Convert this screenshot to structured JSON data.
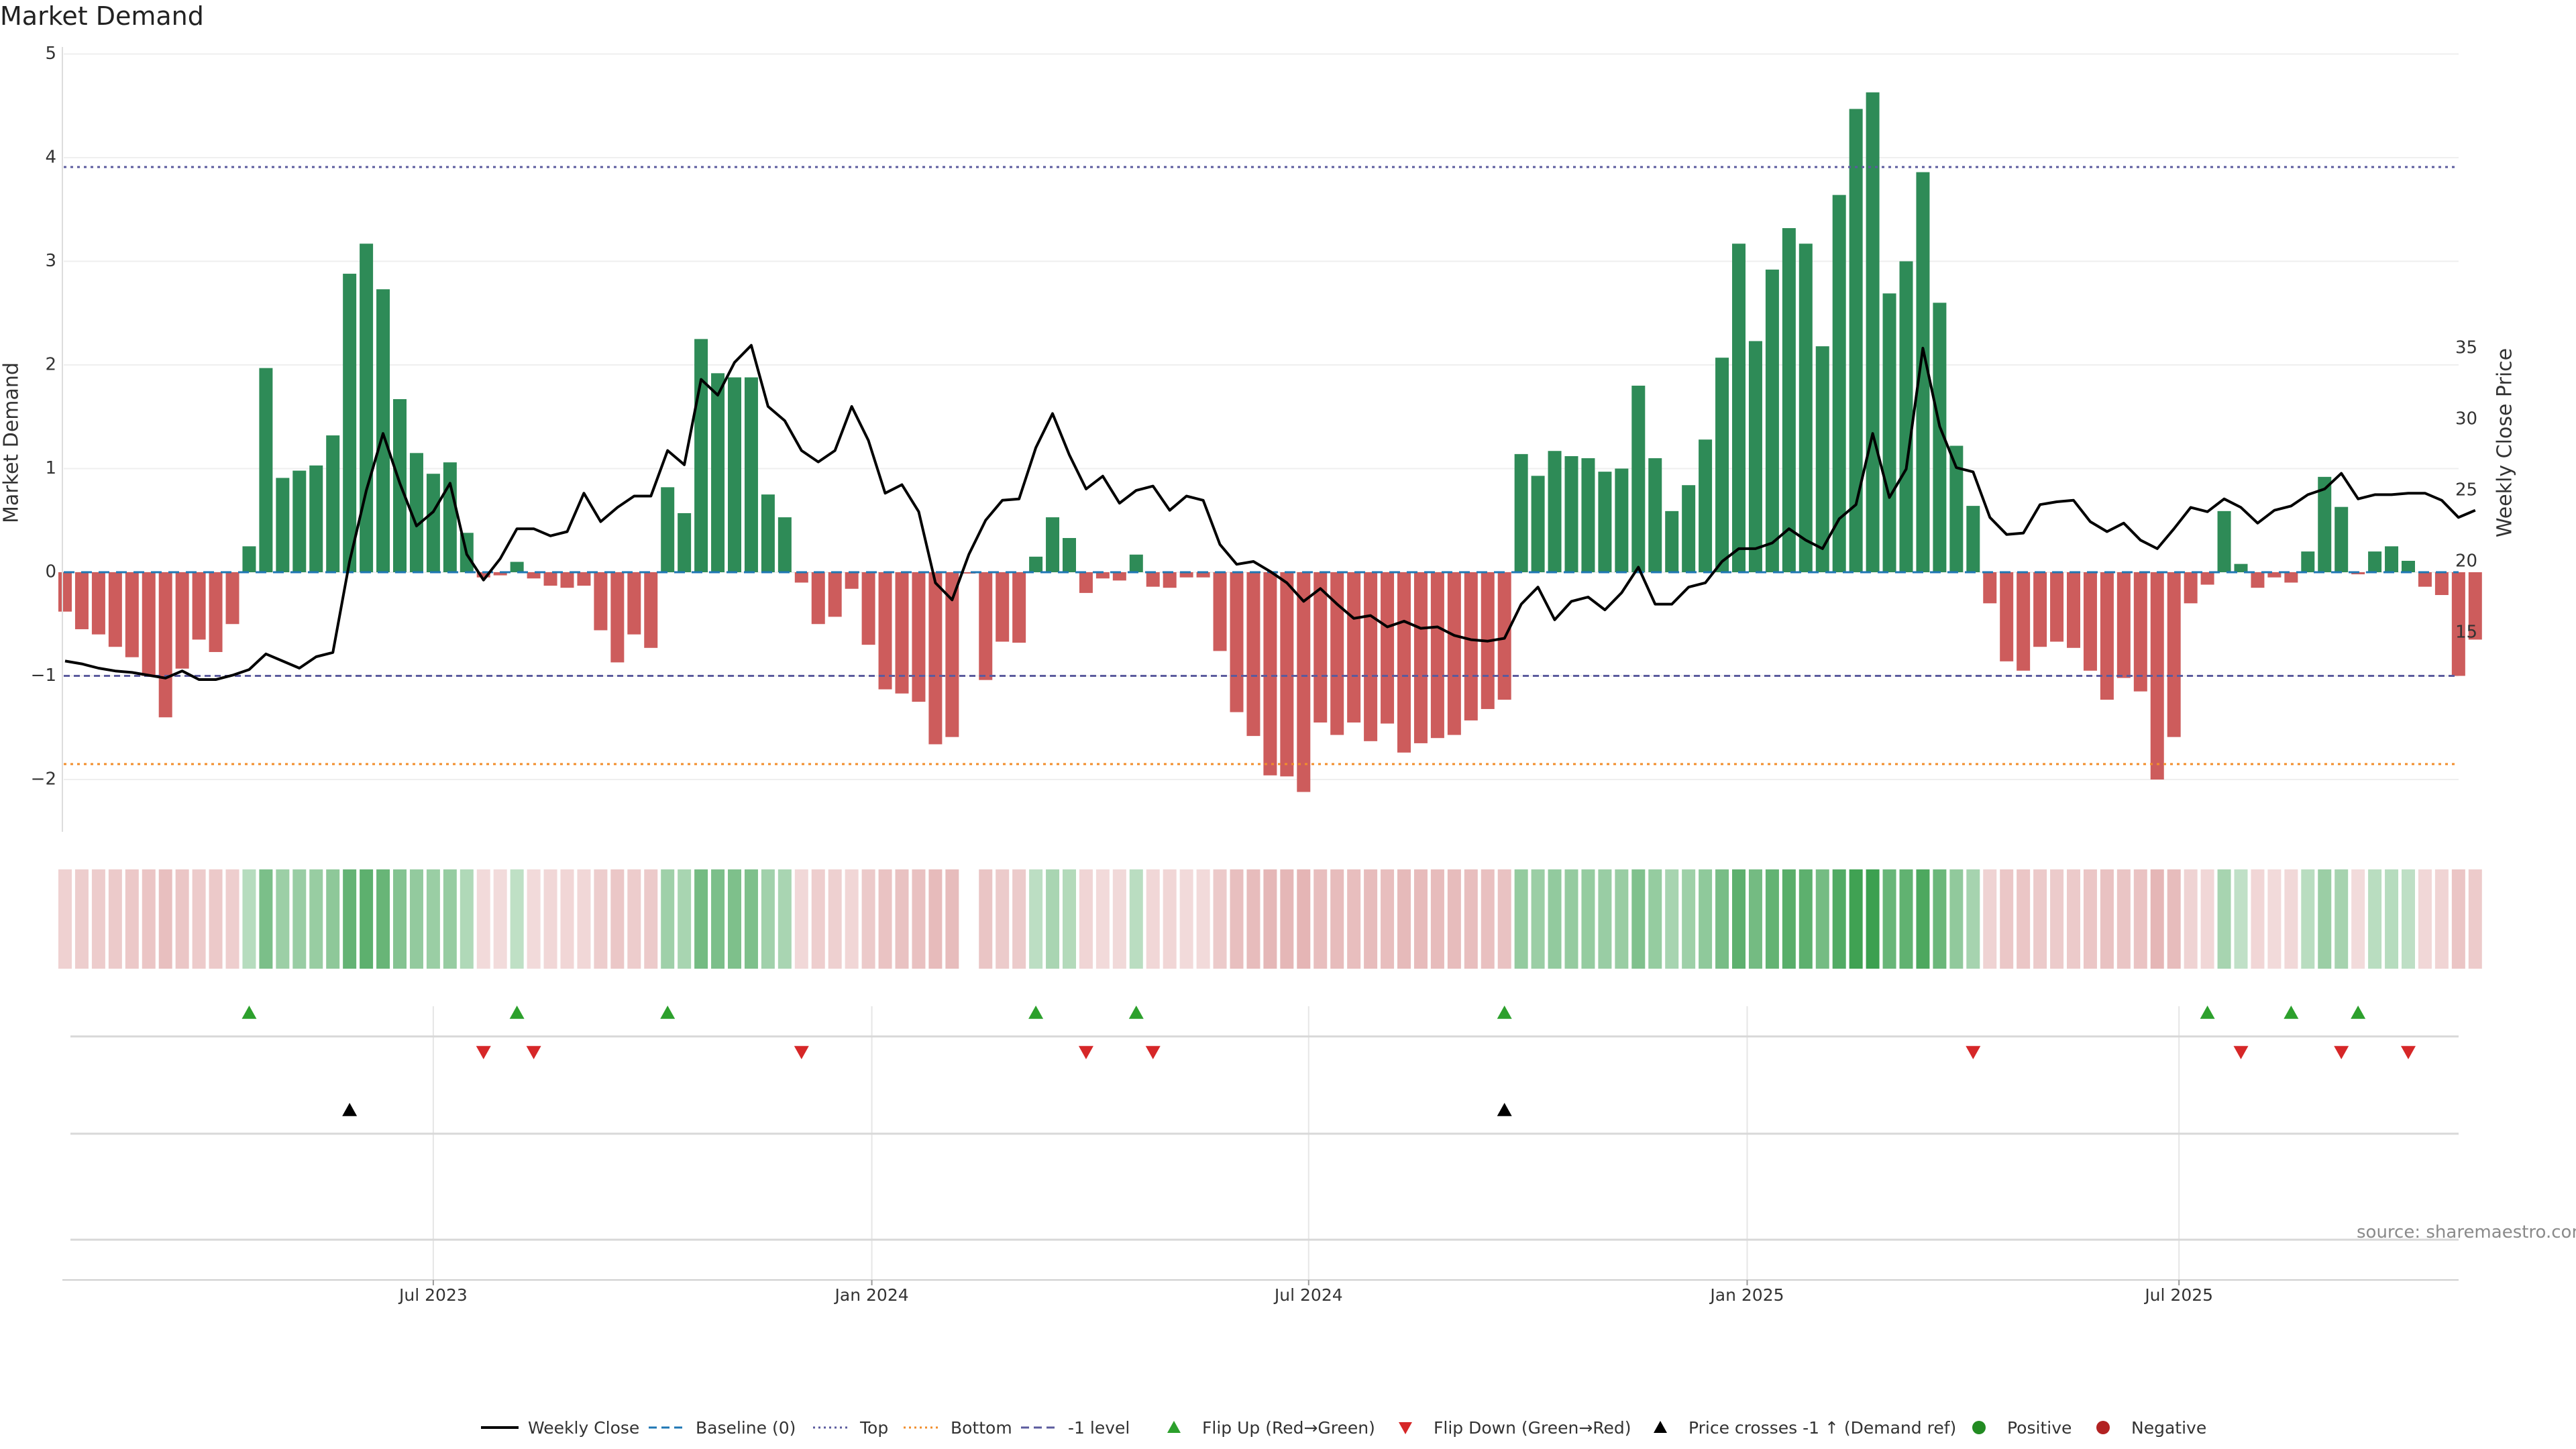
{
  "title": "Market Demand",
  "source": "source: sharemaestro.com",
  "legend": [
    {
      "label": "Weekly Close",
      "kind": "solid",
      "color": "#000000"
    },
    {
      "label": "Baseline (0)",
      "kind": "dash",
      "color": "#1f77b4"
    },
    {
      "label": "Top",
      "kind": "dot",
      "color": "#5b5b9e"
    },
    {
      "label": "Bottom",
      "kind": "dot",
      "color": "#f28e2b"
    },
    {
      "label": "-1 level",
      "kind": "dash",
      "color": "#5b5b9e"
    },
    {
      "label": "Flip Up (Red→Green)",
      "kind": "tri-up",
      "color": "#2ca02c"
    },
    {
      "label": "Flip Down (Green→Red)",
      "kind": "tri-down",
      "color": "#d62728"
    },
    {
      "label": "Price crosses -1 ↑ (Demand ref)",
      "kind": "tri-up",
      "color": "#000000"
    },
    {
      "label": "Positive",
      "kind": "circle",
      "color": "#228b22"
    },
    {
      "label": "Negative",
      "kind": "circle",
      "color": "#b22222"
    }
  ],
  "colors": {
    "positive_bar": "#2e8b57",
    "negative_bar": "#cd5c5c",
    "price_line": "#000000",
    "baseline": "#1f77b4",
    "top": "#5b5b9e",
    "bottom": "#f28e2b",
    "minus_one": "#5b5b9e",
    "flip_up": "#2ca02c",
    "flip_down": "#d62728",
    "cross": "#000000",
    "grid": "#e6e6e6"
  },
  "chart_data": {
    "type": "bar",
    "title": "Market Demand",
    "ylabel": "Market Demand",
    "y2label": "Weekly Close Price",
    "ylim": [
      -2.5,
      5
    ],
    "y2lim": [
      11,
      36.5
    ],
    "yticks": [
      "5",
      "4",
      "3",
      "2",
      "1",
      "0",
      "−1",
      "−2"
    ],
    "ytick_values": [
      5,
      4,
      3,
      2,
      1,
      0,
      -1,
      -2
    ],
    "y2ticks": [
      "35",
      "30",
      "25",
      "20",
      "15"
    ],
    "y2tick_values": [
      35,
      30,
      25,
      20,
      15
    ],
    "xticks": [
      "Jul 2023",
      "Jan 2024",
      "Jul 2024",
      "Jan 2025",
      "Jul 2025"
    ],
    "xtick_weeks": [
      22,
      48.2,
      74.3,
      100.5,
      126.3
    ],
    "reference_lines": {
      "baseline": 0,
      "top": 3.93,
      "bottom": -1.85,
      "minus_one": -1.0
    },
    "weeks": 144,
    "demand": [
      -0.38,
      -0.55,
      -0.6,
      -0.72,
      -0.82,
      -1.0,
      -1.4,
      -0.93,
      -0.65,
      -0.77,
      -0.5,
      0.25,
      1.97,
      0.91,
      0.98,
      1.03,
      1.32,
      2.88,
      3.17,
      2.73,
      1.67,
      1.15,
      0.95,
      1.06,
      0.38,
      -0.05,
      -0.03,
      0.1,
      -0.06,
      -0.13,
      -0.15,
      -0.13,
      -0.56,
      -0.87,
      -0.6,
      -0.73,
      0.82,
      0.57,
      2.25,
      1.92,
      1.88,
      1.88,
      0.75,
      0.53,
      -0.1,
      -0.5,
      -0.43,
      -0.16,
      -0.7,
      -1.13,
      -1.17,
      -1.25,
      -1.66,
      -1.59,
      -0.01,
      -1.04,
      -0.67,
      -0.68,
      0.15,
      0.53,
      0.33,
      -0.2,
      -0.06,
      -0.08,
      0.17,
      -0.14,
      -0.15,
      -0.05,
      -0.05,
      -0.76,
      -1.35,
      -1.58,
      -1.96,
      -1.97,
      -2.12,
      -1.45,
      -1.57,
      -1.45,
      -1.63,
      -1.46,
      -1.74,
      -1.65,
      -1.6,
      -1.57,
      -1.43,
      -1.32,
      -1.23,
      1.14,
      0.93,
      1.17,
      1.12,
      1.1,
      0.97,
      1.0,
      1.8,
      1.1,
      0.59,
      0.84,
      1.28,
      2.07,
      3.17,
      2.23,
      2.92,
      3.32,
      3.17,
      2.18,
      3.64,
      4.47,
      4.63,
      2.69,
      3.0,
      3.86,
      2.6,
      1.22,
      0.64,
      -0.3,
      -0.86,
      -0.95,
      -0.72,
      -0.67,
      -0.73,
      -0.95,
      -1.23,
      -1.02,
      -1.15,
      -2.0,
      -1.59,
      -0.3,
      -0.12,
      0.59,
      0.08,
      -0.15,
      -0.05,
      -0.1,
      0.2,
      0.92,
      0.63,
      -0.02,
      0.2,
      0.25,
      0.11,
      -0.14,
      -0.22,
      -1.0,
      -0.65
    ],
    "weekly_close": [
      13.0,
      12.8,
      12.5,
      12.3,
      12.2,
      12.0,
      11.8,
      12.3,
      11.7,
      11.7,
      12.0,
      12.4,
      13.5,
      13.0,
      12.5,
      13.3,
      13.6,
      20.0,
      25.0,
      29.0,
      25.5,
      22.5,
      23.5,
      25.5,
      20.5,
      18.7,
      20.2,
      22.3,
      22.3,
      21.8,
      22.1,
      24.8,
      22.8,
      23.8,
      24.6,
      24.6,
      27.8,
      26.8,
      32.8,
      31.7,
      34.0,
      35.2,
      30.9,
      29.9,
      27.8,
      27.0,
      27.8,
      30.9,
      28.5,
      24.8,
      25.4,
      23.5,
      18.5,
      17.3,
      20.5,
      22.9,
      24.3,
      24.4,
      28.0,
      30.4,
      27.5,
      25.1,
      26.0,
      24.1,
      25.0,
      25.3,
      23.6,
      24.6,
      24.3,
      21.2,
      19.8,
      20.0,
      19.3,
      18.5,
      17.2,
      18.1,
      17.0,
      16.0,
      16.2,
      15.4,
      15.8,
      15.3,
      15.4,
      14.8,
      14.5,
      14.4,
      14.6,
      17.0,
      18.2,
      15.9,
      17.2,
      17.5,
      16.6,
      17.8,
      19.6,
      17.0,
      17.0,
      18.2,
      18.5,
      20.0,
      20.9,
      20.9,
      21.3,
      22.3,
      21.5,
      20.9,
      23.0,
      24.0,
      29.0,
      24.5,
      26.5,
      35.0,
      29.5,
      26.6,
      26.3,
      23.1,
      21.9,
      22.0,
      24.0,
      24.2,
      24.3,
      22.8,
      22.1,
      22.7,
      21.5,
      20.9,
      22.3,
      23.8,
      23.5,
      24.4,
      23.8,
      22.7,
      23.6,
      23.9,
      24.7,
      25.1,
      26.2,
      24.4,
      24.7,
      24.7,
      24.8,
      24.8,
      24.3,
      23.1,
      23.6
    ],
    "flip_up_weeks": [
      11,
      27,
      36,
      58,
      64,
      86,
      128,
      133,
      137
    ],
    "flip_down_weeks": [
      25,
      28,
      44,
      61,
      65,
      114,
      130,
      136,
      140
    ],
    "price_cross_weeks": [
      17,
      86
    ]
  }
}
